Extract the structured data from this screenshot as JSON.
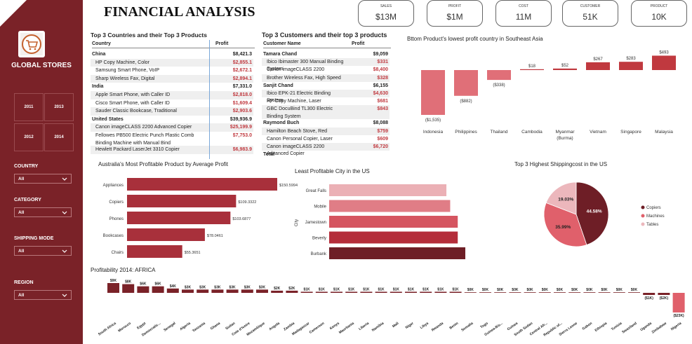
{
  "title": "FINANCIAL ANALYSIS",
  "kpis": [
    {
      "label": "SALES",
      "value": "$13M"
    },
    {
      "label": "PROFIT",
      "value": "$1M"
    },
    {
      "label": "COST",
      "value": "11M"
    },
    {
      "label": "CUSTOMER",
      "value": "51K"
    },
    {
      "label": "PRODUCT",
      "value": "10K"
    }
  ],
  "sidebar": {
    "brand": "GLOBAL STORES",
    "years": [
      "2011",
      "2013",
      "2012",
      "2014"
    ],
    "filters": [
      {
        "label": "COUNTRY",
        "value": "All"
      },
      {
        "label": "CATEGORY",
        "value": "All"
      },
      {
        "label": "SHIPPING MODE",
        "value": "All"
      },
      {
        "label": "REGION",
        "value": "All"
      }
    ],
    "colors": {
      "bg": "#7a2228"
    }
  },
  "countries_table": {
    "title": "Top 3 Countries and their Top 3 Products",
    "headers": [
      "Country",
      "Profit"
    ],
    "rows": [
      {
        "text": "China",
        "value": "$8,421.3",
        "kind": "group"
      },
      {
        "text": "HP Copy Machine, Color",
        "value": "$2,855.1",
        "kind": "item"
      },
      {
        "text": "Samsung Smart Phone, VoIP",
        "value": "$2,672.1",
        "kind": "item"
      },
      {
        "text": "Sharp Wireless Fax, Digital",
        "value": "$2,894.1",
        "kind": "item"
      },
      {
        "text": "India",
        "value": "$7,331.0",
        "kind": "group"
      },
      {
        "text": "Apple Smart Phone, with Caller ID",
        "value": "$2,818.0",
        "kind": "item"
      },
      {
        "text": "Cisco Smart Phone, with Caller ID",
        "value": "$1,609.4",
        "kind": "item"
      },
      {
        "text": "Sauder Classic Bookcase, Traditional",
        "value": "$2,903.6",
        "kind": "item"
      },
      {
        "text": "United States",
        "value": "$39,936.9",
        "kind": "group"
      },
      {
        "text": "Canon imageCLASS 2200 Advanced Copier",
        "value": "$25,199.9",
        "kind": "item"
      },
      {
        "text": "Fellowes PB500 Electric Punch Plastic Comb Binding Machine with Manual Bind",
        "value": "$7,753.0",
        "kind": "item2"
      },
      {
        "text": "Hewlett Packard LaserJet 3310 Copier",
        "value": "$6,983.9",
        "kind": "item"
      }
    ]
  },
  "customers_table": {
    "title": "Top 3 Customers and their top 3 products",
    "headers": [
      "Customer Name",
      "Profit"
    ],
    "rows": [
      {
        "text": "Tamara Chand",
        "value": "$9,059",
        "kind": "group"
      },
      {
        "text": "Ibico Ibimaster 300 Manual Binding System",
        "value": "$331",
        "kind": "item"
      },
      {
        "text": "Canon imageCLASS 2200 Advanced Copier",
        "value": "$8,400",
        "kind": "item"
      },
      {
        "text": "Brother Wireless Fax, High Speed",
        "value": "$328",
        "kind": "item"
      },
      {
        "text": "Sanjit Chand",
        "value": "$6,155",
        "kind": "group"
      },
      {
        "text": "Ibico EPK-21 Electric Binding System",
        "value": "$4,630",
        "kind": "item"
      },
      {
        "text": "HP Copy Machine, Laser",
        "value": "$681",
        "kind": "item"
      },
      {
        "text": "GBC DocuBind TL300 Electric Binding System",
        "value": "$843",
        "kind": "item2"
      },
      {
        "text": "Raymond Buch",
        "value": "$8,088",
        "kind": "group"
      },
      {
        "text": "Hamilton Beach Stove, Red",
        "value": "$759",
        "kind": "item"
      },
      {
        "text": "Canon Personal Copier, Laser",
        "value": "$609",
        "kind": "item"
      },
      {
        "text": "Canon imageCLASS 2200 Advanced Copier",
        "value": "$6,720",
        "kind": "item"
      },
      {
        "text": "Total",
        "value": "",
        "kind": "total"
      }
    ]
  },
  "chart_data": [
    {
      "id": "sea",
      "type": "bar",
      "title": "Bttom Product's lowest profit country in Southeast Asia",
      "categories": [
        "Indonesia",
        "Philippines",
        "Thailand",
        "Cambodia",
        "Myanmar (Burma)",
        "Vietnam",
        "Singapore",
        "Malaysia"
      ],
      "values": [
        -1535,
        -882,
        -338,
        18,
        52,
        267,
        283,
        493
      ],
      "labels": [
        "($1,535)",
        "($882)",
        "($338)",
        "$18",
        "$52",
        "$267",
        "$283",
        "$493"
      ],
      "colors": {
        "bar": "#e06f78",
        "bar_pos": "#c0393f"
      }
    },
    {
      "id": "aus",
      "type": "bar",
      "title": "Australia's Most Profitable Product by Average Profit",
      "categories": [
        "Appliances",
        "Copiers",
        "Phones",
        "Bookcases",
        "Chairs"
      ],
      "values": [
        150.5994,
        109.3322,
        103.6877,
        78.0461,
        55.3651
      ],
      "labels": [
        "$150.5994",
        "$109.3322",
        "$103.6877",
        "$78.0461",
        "$55.3651"
      ],
      "colors": {
        "bar": "#a8303b"
      }
    },
    {
      "id": "city",
      "type": "bar",
      "title": "Least Profitable City in the US",
      "ylabel": "City",
      "categories": [
        "Great Falls",
        "Mobile",
        "Jamestown",
        "Beverly",
        "Burbank"
      ],
      "values": [
        -6200,
        -6400,
        -6800,
        -6800,
        -7200
      ],
      "colors": [
        "#ebb0b5",
        "#e07d86",
        "#d55560",
        "#b42d3a",
        "#6e1e26"
      ]
    },
    {
      "id": "ship",
      "type": "pie",
      "title": "Top 3 Highest Shippingcost in the US",
      "categories": [
        "Copiers",
        "Machines",
        "Tables"
      ],
      "values": [
        44.58,
        35.99,
        19.03
      ],
      "labels": [
        "44.58%",
        "35.99%",
        "19.03%"
      ],
      "colors": [
        "#6e1e26",
        "#e0606b",
        "#ecb7bc"
      ]
    },
    {
      "id": "africa",
      "type": "bar",
      "title": "Profitability 2014: AFRICA",
      "categories": [
        "South Africa",
        "Morocco",
        "Egypt",
        "Democratic...",
        "Senegal",
        "Algeria",
        "Tanzania",
        "Ghana",
        "Sudan",
        "Cote d'Ivoire",
        "Mozambique",
        "Angola",
        "Zambia",
        "Madagascar",
        "Cameroon",
        "Kenya",
        "Mauritania",
        "Liberia",
        "Namibia",
        "Mali",
        "Niger",
        "Libya",
        "Rwanda",
        "Benin",
        "Somalia",
        "Togo",
        "Guinea-Bis...",
        "Guinea",
        "South Sudan",
        "Central Afr...",
        "Republic of...",
        "Sierra Leone",
        "Gabon",
        "Ethiopia",
        "Tunisia",
        "Swaziland",
        "Uganda",
        "Zimbabwe",
        "Nigeria"
      ],
      "values": [
        9,
        8,
        6,
        6,
        4,
        3,
        3,
        3,
        3,
        3,
        3,
        2,
        2,
        1,
        1,
        1,
        1,
        1,
        1,
        1,
        1,
        1,
        1,
        1,
        0,
        0,
        0,
        0,
        0,
        0,
        0,
        0,
        0,
        0,
        0,
        0,
        -1,
        -2,
        -23
      ],
      "labels": [
        "$9K",
        "$8K",
        "$6K",
        "$6K",
        "$4K",
        "$3K",
        "$3K",
        "$3K",
        "$3K",
        "$3K",
        "$3K",
        "$2K",
        "$2K",
        "$1K",
        "$1K",
        "$1K",
        "$1K",
        "$1K",
        "$1K",
        "$1K",
        "$1K",
        "$1K",
        "$1K",
        "$1K",
        "$0K",
        "$0K",
        "$0K",
        "$0K",
        "$0K",
        "$0K",
        "$0K",
        "$0K",
        "$0K",
        "$0K",
        "$0K",
        "$0K",
        "($1K)",
        "($2K)",
        "($23K)"
      ],
      "colors": {
        "bar": "#7a2228",
        "neg": "#e0606b"
      }
    }
  ]
}
